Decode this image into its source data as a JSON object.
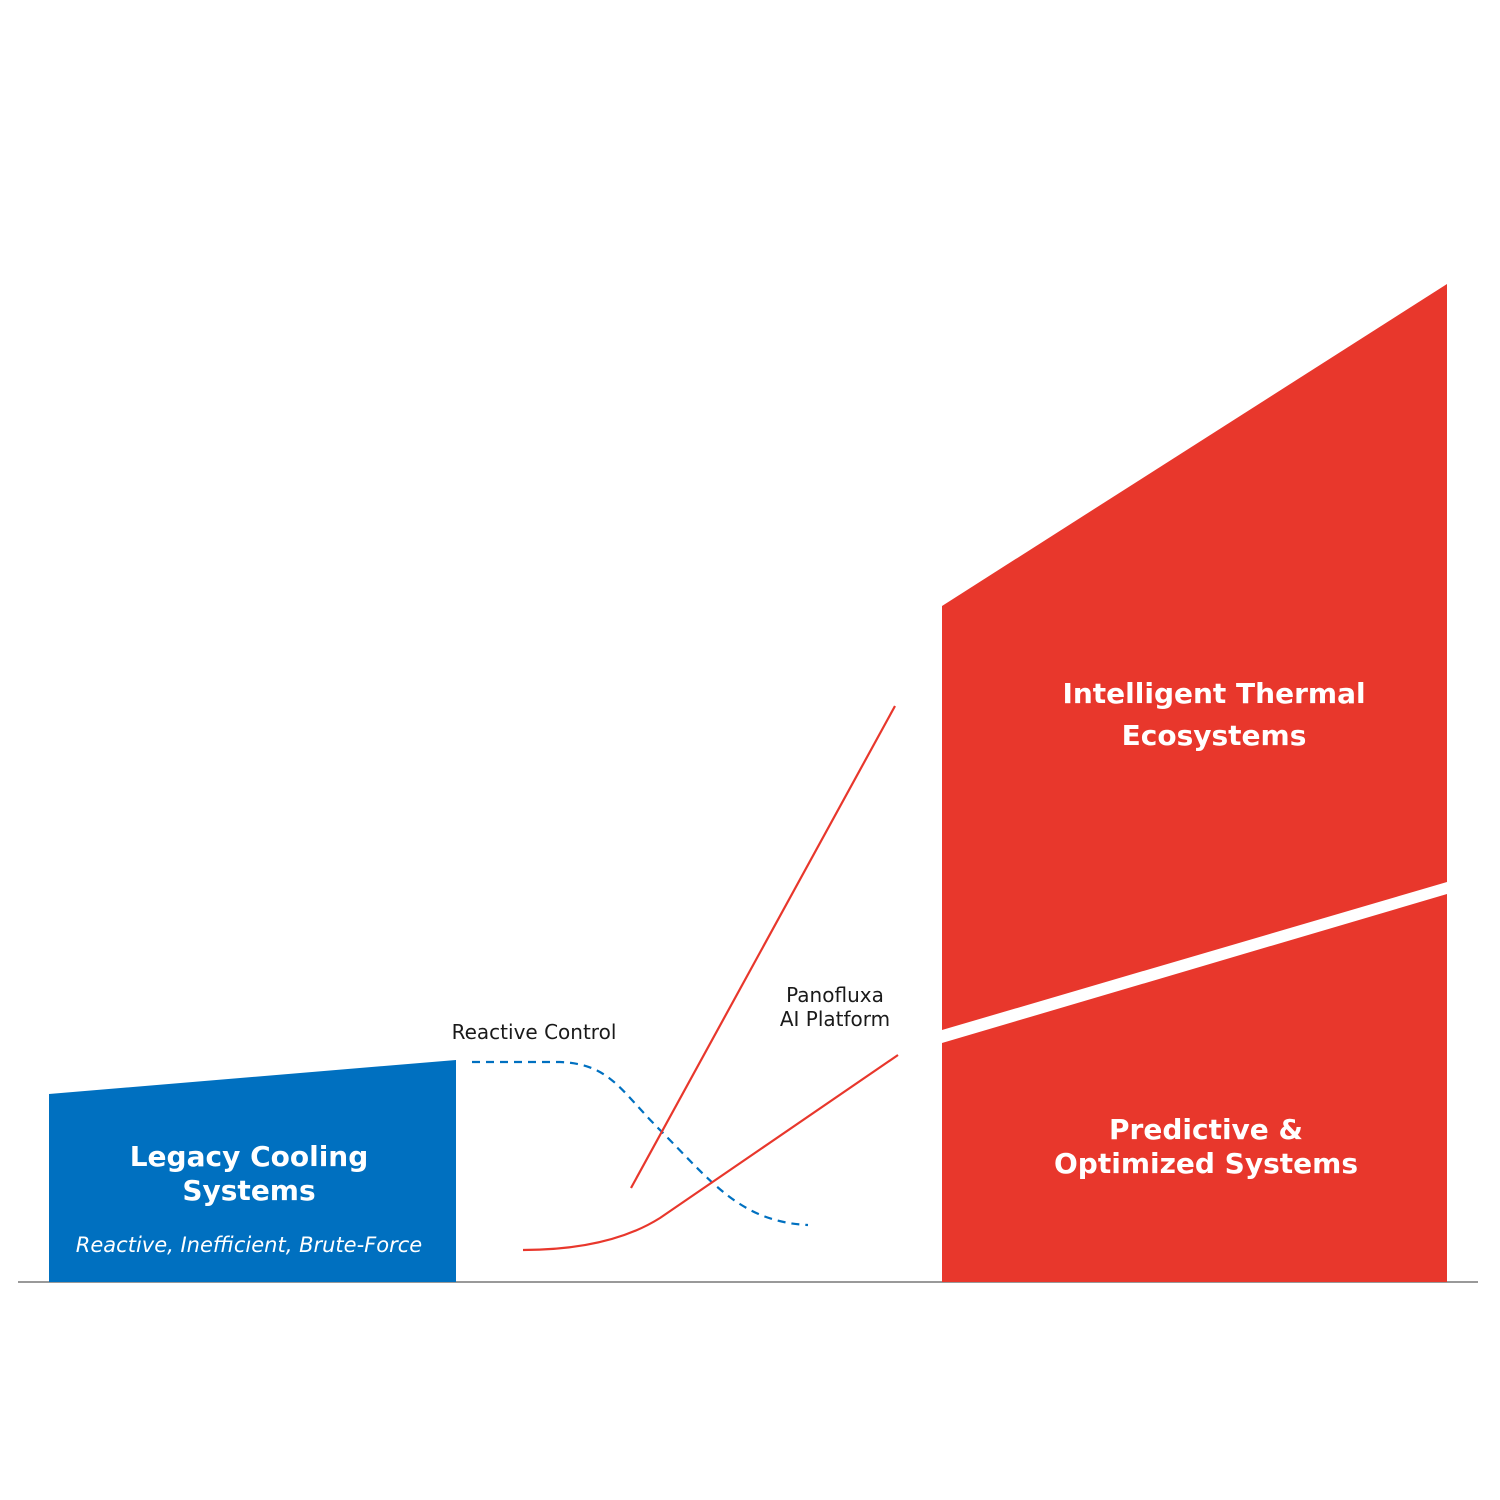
{
  "colors": {
    "legacy": "#0070C0",
    "modern": "#E8372C",
    "reactive_line": "#0070C0",
    "ai_line": "#E8372C",
    "baseline": "#999999",
    "background": "#ffffff"
  },
  "legacy": {
    "title_line1": "Legacy Cooling",
    "title_line2": "Systems",
    "subtitle": "Reactive, Inefficient, Brute-Force"
  },
  "predictive": {
    "title_line1": "Predictive &",
    "title_line2": "Optimized Systems"
  },
  "intelligent": {
    "title_line1": "Intelligent Thermal",
    "title_line2": "Ecosystems"
  },
  "flows": {
    "reactive_label": "Reactive Control",
    "ai_label_line1": "Panofluxa",
    "ai_label_line2": "AI Platform"
  }
}
